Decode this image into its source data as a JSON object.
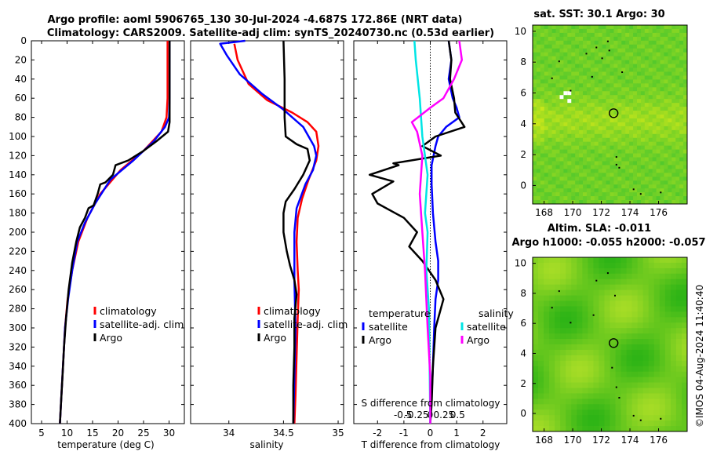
{
  "figure": {
    "title_line1": "Argo profile: aoml 5906765_130 30-Jul-2024 -4.687S 172.86E (NRT data)",
    "title_line2": "Climatology: CARS2009. Satellite-adj clim: synTS_20240730.nc (0.53d earlier)",
    "credit": "©IMOS 04-Aug-2024 11:40:40"
  },
  "colors": {
    "clim": "#ff0000",
    "sat": "#0000ff",
    "argo": "#000000",
    "sat_s": "#00e5e5",
    "clim_s": "#ff00ff"
  },
  "chart_data": [
    {
      "id": "temperature",
      "type": "line",
      "xlabel": "temperature (deg C)",
      "xlim": [
        3,
        33
      ],
      "ylim": [
        400,
        0
      ],
      "xticks": [
        5,
        10,
        15,
        20,
        25,
        30
      ],
      "xtick_labels": [
        "5",
        "10",
        "15",
        "20",
        "25",
        "30"
      ],
      "yticks": [
        0,
        20,
        40,
        60,
        80,
        100,
        120,
        140,
        160,
        180,
        200,
        220,
        240,
        260,
        280,
        300,
        320,
        340,
        360,
        380,
        400
      ],
      "ytick_labels": [
        "0",
        "20",
        "40",
        "60",
        "80",
        "100",
        "120",
        "140",
        "160",
        "180",
        "200",
        "220",
        "240",
        "260",
        "280",
        "300",
        "320",
        "340",
        "360",
        "380",
        "400"
      ],
      "series": [
        {
          "name": "climatology",
          "color": "clim",
          "points": [
            [
              29.7,
              0
            ],
            [
              29.7,
              60
            ],
            [
              29.5,
              80
            ],
            [
              28.5,
              95
            ],
            [
              25,
              115
            ],
            [
              20.5,
              135
            ],
            [
              16.5,
              160
            ],
            [
              14,
              185
            ],
            [
              12.2,
              210
            ],
            [
              11,
              240
            ],
            [
              10.1,
              270
            ],
            [
              9.6,
              300
            ],
            [
              9.2,
              340
            ],
            [
              8.9,
              370
            ],
            [
              8.6,
              400
            ]
          ]
        },
        {
          "name": "satellite-adj. clim",
          "color": "sat",
          "points": [
            [
              30.1,
              0
            ],
            [
              30.1,
              60
            ],
            [
              30,
              80
            ],
            [
              29.2,
              90
            ],
            [
              27,
              105
            ],
            [
              23,
              125
            ],
            [
              18.5,
              145
            ],
            [
              15.5,
              170
            ],
            [
              13.5,
              190
            ],
            [
              12,
              210
            ],
            [
              11,
              240
            ],
            [
              10.2,
              270
            ],
            [
              9.6,
              300
            ],
            [
              9.2,
              340
            ],
            [
              8.9,
              370
            ],
            [
              8.6,
              400
            ]
          ]
        },
        {
          "name": "Argo",
          "color": "argo",
          "points": [
            [
              30.1,
              0
            ],
            [
              30.1,
              85
            ],
            [
              29.8,
              95
            ],
            [
              27.5,
              105
            ],
            [
              25,
              115
            ],
            [
              22,
              125
            ],
            [
              19.5,
              130
            ],
            [
              19,
              140
            ],
            [
              17.5,
              148
            ],
            [
              16.5,
              150
            ],
            [
              16,
              160
            ],
            [
              15.2,
              172
            ],
            [
              14.2,
              175
            ],
            [
              13.5,
              185
            ],
            [
              12.5,
              195
            ],
            [
              11.8,
              210
            ],
            [
              11,
              232
            ],
            [
              10.3,
              260
            ],
            [
              9.8,
              290
            ],
            [
              9.4,
              320
            ],
            [
              9.1,
              350
            ],
            [
              8.8,
              380
            ],
            [
              8.6,
              400
            ]
          ]
        }
      ],
      "legend": [
        "climatology",
        "satellite-adj. clim",
        "Argo"
      ]
    },
    {
      "id": "salinity",
      "type": "line",
      "xlabel": "salinity",
      "xlim": [
        33.65,
        35.05
      ],
      "ylim": [
        400,
        0
      ],
      "xticks": [
        34,
        34.5,
        35
      ],
      "xtick_labels": [
        "34",
        "34.5",
        "35"
      ],
      "series": [
        {
          "name": "climatology",
          "color": "clim",
          "points": [
            [
              34.05,
              3
            ],
            [
              34.08,
              20
            ],
            [
              34.18,
              45
            ],
            [
              34.35,
              62
            ],
            [
              34.58,
              75
            ],
            [
              34.72,
              85
            ],
            [
              34.8,
              95
            ],
            [
              34.82,
              110
            ],
            [
              34.8,
              125
            ],
            [
              34.73,
              145
            ],
            [
              34.67,
              165
            ],
            [
              34.63,
              185
            ],
            [
              34.62,
              210
            ],
            [
              34.63,
              240
            ],
            [
              34.64,
              260
            ],
            [
              34.63,
              290
            ],
            [
              34.62,
              330
            ],
            [
              34.61,
              370
            ],
            [
              34.6,
              400
            ]
          ]
        },
        {
          "name": "satellite-adj. clim",
          "color": "sat",
          "points": [
            [
              34.15,
              0
            ],
            [
              33.92,
              3
            ],
            [
              33.98,
              15
            ],
            [
              34.1,
              35
            ],
            [
              34.3,
              55
            ],
            [
              34.5,
              72
            ],
            [
              34.68,
              90
            ],
            [
              34.78,
              110
            ],
            [
              34.8,
              120
            ],
            [
              34.77,
              135
            ],
            [
              34.7,
              150
            ],
            [
              34.62,
              175
            ],
            [
              34.6,
              200
            ],
            [
              34.6,
              250
            ],
            [
              34.61,
              300
            ],
            [
              34.6,
              350
            ],
            [
              34.59,
              400
            ]
          ]
        },
        {
          "name": "Argo",
          "color": "argo",
          "points": [
            [
              34.5,
              0
            ],
            [
              34.51,
              40
            ],
            [
              34.51,
              80
            ],
            [
              34.52,
              100
            ],
            [
              34.62,
              108
            ],
            [
              34.72,
              113
            ],
            [
              34.74,
              125
            ],
            [
              34.68,
              140
            ],
            [
              34.6,
              155
            ],
            [
              34.52,
              168
            ],
            [
              34.5,
              180
            ],
            [
              34.5,
              200
            ],
            [
              34.53,
              220
            ],
            [
              34.56,
              235
            ],
            [
              34.6,
              250
            ],
            [
              34.62,
              265
            ],
            [
              34.6,
              290
            ],
            [
              34.6,
              320
            ],
            [
              34.59,
              360
            ],
            [
              34.59,
              400
            ]
          ]
        }
      ],
      "legend": [
        "climatology",
        "satellite-adj. clim",
        "Argo"
      ]
    },
    {
      "id": "difference",
      "type": "line",
      "xlabel": "T difference from climatology",
      "xlabel_top": "S difference from climatology",
      "xlim": [
        -2.9,
        2.9
      ],
      "ylim": [
        400,
        0
      ],
      "xticks": [
        -2,
        -1,
        0,
        1,
        2
      ],
      "xtick_labels": [
        "-2",
        "-1",
        "0",
        "1",
        "2"
      ],
      "sticks": [
        -0.5,
        -0.25,
        0,
        0.25,
        0.5
      ],
      "stick_labels": [
        "-0.5",
        "-0.25",
        "0",
        "0.25",
        "0.5"
      ],
      "srange": [
        -1.4,
        1.4
      ],
      "series": [
        {
          "name": "temperature satellite",
          "color": "sat",
          "points": [
            [
              0.7,
              0
            ],
            [
              0.8,
              20
            ],
            [
              0.7,
              40
            ],
            [
              0.85,
              60
            ],
            [
              1.0,
              70
            ],
            [
              1.1,
              80
            ],
            [
              0.6,
              90
            ],
            [
              0.3,
              100
            ],
            [
              0.2,
              110
            ],
            [
              0.05,
              130
            ],
            [
              0.05,
              150
            ],
            [
              0.1,
              180
            ],
            [
              0.2,
              210
            ],
            [
              0.3,
              230
            ],
            [
              0.3,
              250
            ],
            [
              0.2,
              270
            ],
            [
              0.15,
              300
            ],
            [
              0.1,
              340
            ],
            [
              0.05,
              370
            ],
            [
              0,
              400
            ]
          ]
        },
        {
          "name": "temperature Argo",
          "color": "argo",
          "points": [
            [
              0.7,
              0
            ],
            [
              0.8,
              20
            ],
            [
              0.75,
              40
            ],
            [
              0.9,
              60
            ],
            [
              0.95,
              75
            ],
            [
              1.3,
              90
            ],
            [
              0.2,
              100
            ],
            [
              -0.3,
              110
            ],
            [
              0.4,
              120
            ],
            [
              -1.4,
              128
            ],
            [
              -1.2,
              130
            ],
            [
              -2.3,
              140
            ],
            [
              -1.4,
              147
            ],
            [
              -2.2,
              160
            ],
            [
              -2.0,
              170
            ],
            [
              -1.0,
              185
            ],
            [
              -0.5,
              200
            ],
            [
              -0.8,
              215
            ],
            [
              -0.3,
              230
            ],
            [
              0.2,
              250
            ],
            [
              0.5,
              270
            ],
            [
              0.2,
              300
            ],
            [
              0.1,
              340
            ],
            [
              0.05,
              380
            ],
            [
              0,
              400
            ]
          ]
        },
        {
          "name": "salinity satellite",
          "color": "sat_s",
          "points": [
            [
              -0.6,
              0
            ],
            [
              -0.55,
              20
            ],
            [
              -0.4,
              60
            ],
            [
              -0.3,
              100
            ],
            [
              -0.1,
              140
            ],
            [
              -0.2,
              180
            ],
            [
              -0.1,
              200
            ],
            [
              -0.15,
              240
            ],
            [
              -0.05,
              280
            ],
            [
              -0.03,
              330
            ],
            [
              0,
              400
            ]
          ]
        },
        {
          "name": "salinity clim",
          "color": "clim_s",
          "points": [
            [
              1.1,
              0
            ],
            [
              1.2,
              20
            ],
            [
              0.9,
              40
            ],
            [
              0.5,
              60
            ],
            [
              0,
              70
            ],
            [
              -0.7,
              85
            ],
            [
              -0.5,
              95
            ],
            [
              -0.3,
              120
            ],
            [
              -0.4,
              160
            ],
            [
              -0.3,
              200
            ],
            [
              -0.2,
              240
            ],
            [
              -0.1,
              300
            ],
            [
              0,
              350
            ],
            [
              0,
              400
            ]
          ]
        }
      ],
      "legend_left_title": "temperature",
      "legend_left": [
        "satellite",
        "Argo"
      ],
      "legend_right_title": "salinity",
      "legend_right": [
        "satellite",
        "Argo"
      ]
    },
    {
      "id": "sst_map",
      "type": "heatmap",
      "title": "sat. SST: 30.1 Argo: 30",
      "xticks": [
        168,
        170,
        172,
        174,
        176
      ],
      "xtick_labels": [
        "168",
        "170",
        "172",
        "174",
        "176"
      ],
      "yticks": [
        0,
        2,
        4,
        6,
        8,
        10
      ],
      "ytick_labels": [
        "0",
        "2",
        "4",
        "6",
        "8",
        "10"
      ],
      "xlim": [
        167.2,
        178
      ],
      "ylim": [
        -1.2,
        10.4
      ],
      "argo_position": [
        172.86,
        4.687
      ]
    },
    {
      "id": "sla_map",
      "type": "heatmap",
      "title": "Altim. SLA: -0.011",
      "subtitle": "Argo h1000: -0.055 h2000: -0.057",
      "xticks": [
        168,
        170,
        172,
        174,
        176
      ],
      "xtick_labels": [
        "168",
        "170",
        "172",
        "174",
        "176"
      ],
      "yticks": [
        0,
        2,
        4,
        6,
        8,
        10
      ],
      "ytick_labels": [
        "0",
        "2",
        "4",
        "6",
        "8",
        "10"
      ],
      "xlim": [
        167.2,
        178
      ],
      "ylim": [
        -1.2,
        10.4
      ],
      "argo_position": [
        172.86,
        4.687
      ]
    }
  ]
}
